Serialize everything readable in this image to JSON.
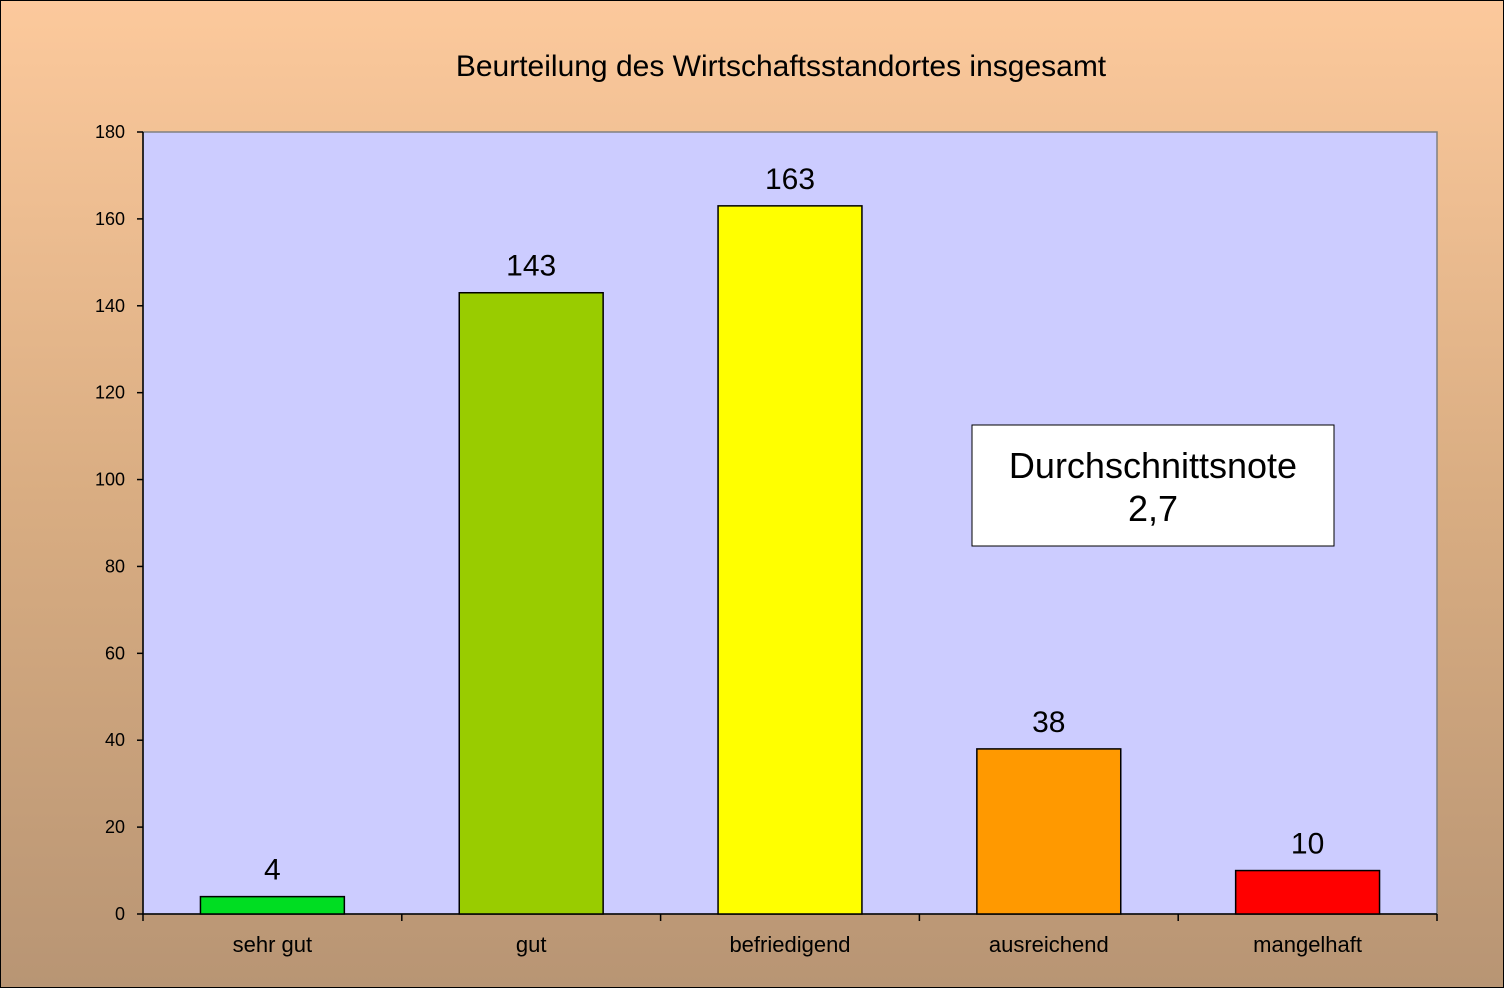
{
  "chart_data": {
    "type": "bar",
    "title": "Beurteilung des Wirtschaftsstandortes insgesamt",
    "xlabel": "",
    "ylabel": "",
    "categories": [
      "sehr gut",
      "gut",
      "befriedigend",
      "ausreichend",
      "mangelhaft"
    ],
    "values": [
      4,
      143,
      163,
      38,
      10
    ],
    "data_labels": [
      "4",
      "143",
      "163",
      "38",
      "10"
    ],
    "bar_colors": [
      "#00dd22",
      "#99cc00",
      "#ffff00",
      "#ff9900",
      "#ff0000"
    ],
    "ylim": [
      0,
      180
    ],
    "yticks": [
      0,
      20,
      40,
      60,
      80,
      100,
      120,
      140,
      160,
      180
    ],
    "grid": false,
    "legend": "none",
    "plot_background": "#ccccff",
    "annotation": {
      "line1": "Durchschnittsnote",
      "line2": "2,7"
    }
  }
}
